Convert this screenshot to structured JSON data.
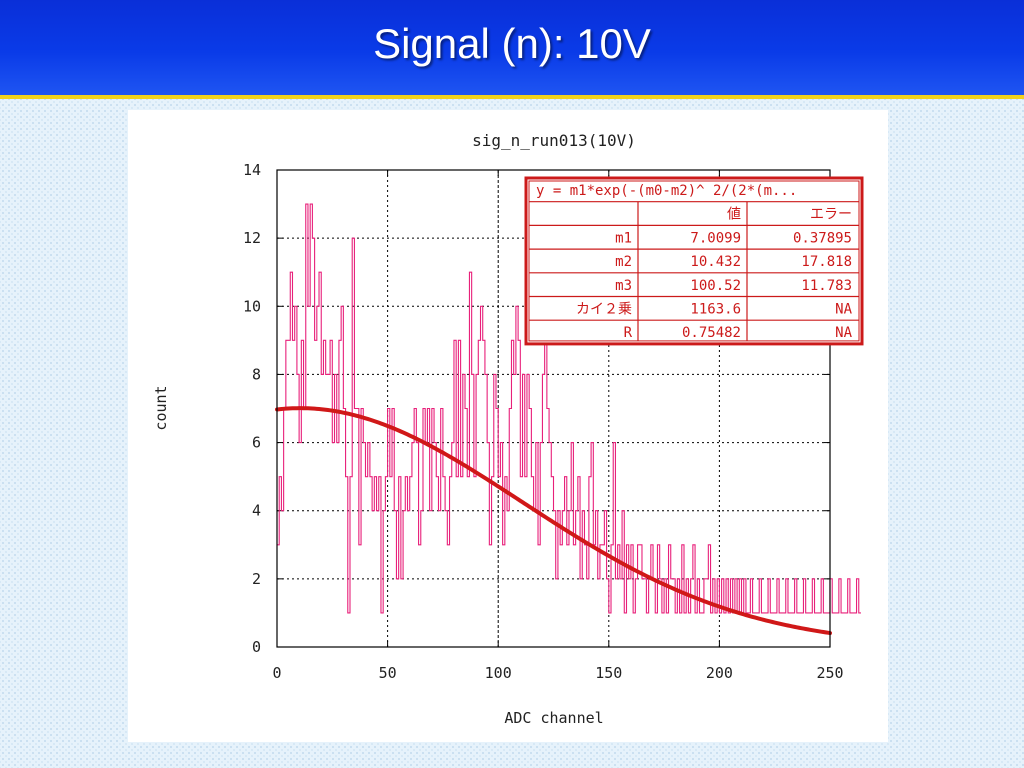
{
  "slide": {
    "title": "Signal (n):  10V"
  },
  "chart_data": {
    "type": "line",
    "title": "sig_n_run013(10V)",
    "xlabel": "ADC channel",
    "ylabel": "count",
    "xlim": [
      0,
      250
    ],
    "ylim": [
      0,
      14
    ],
    "xticks": [
      0,
      50,
      100,
      150,
      200,
      250
    ],
    "yticks": [
      0,
      2,
      4,
      6,
      8,
      10,
      12,
      14
    ],
    "grid": true,
    "series": [
      {
        "kind": "step-histogram",
        "color": "#e8207a",
        "bin_width": 1,
        "x_start": 0,
        "values": [
          3,
          5,
          4,
          7,
          9,
          9,
          11,
          9,
          10,
          8,
          6,
          9,
          7,
          13,
          10,
          13,
          12,
          9,
          10,
          11,
          8,
          9,
          8,
          8,
          9,
          6,
          8,
          6,
          9,
          10,
          7,
          5,
          1,
          5,
          12,
          7,
          7,
          3,
          7,
          6,
          5,
          6,
          5,
          4,
          5,
          4,
          5,
          1,
          4,
          5,
          7,
          5,
          7,
          4,
          2,
          5,
          2,
          4,
          5,
          4,
          5,
          6,
          7,
          6,
          3,
          4,
          7,
          6,
          7,
          4,
          7,
          6,
          5,
          4,
          7,
          5,
          4,
          3,
          5,
          6,
          9,
          5,
          9,
          5,
          8,
          7,
          5,
          11,
          8,
          5,
          8,
          9,
          10,
          9,
          8,
          6,
          3,
          5,
          8,
          7,
          5,
          6,
          3,
          5,
          4,
          7,
          9,
          8,
          10,
          9,
          5,
          8,
          5,
          8,
          7,
          5,
          4,
          6,
          3,
          6,
          8,
          9,
          7,
          6,
          5,
          4,
          2,
          4,
          3,
          4,
          5,
          3,
          4,
          6,
          3,
          4,
          5,
          2,
          4,
          3,
          2,
          5,
          6,
          3,
          4,
          2,
          3,
          3,
          4,
          2,
          1,
          3,
          6,
          2,
          3,
          2,
          4,
          1,
          3,
          2,
          3,
          1,
          2,
          3,
          3,
          2,
          2,
          1,
          2,
          3,
          2,
          1,
          3,
          2,
          1,
          2,
          1,
          3,
          2,
          2,
          1,
          2,
          1,
          3,
          1,
          2,
          1,
          2,
          3,
          1,
          2,
          1,
          1,
          2,
          2,
          3,
          1,
          2,
          1,
          2,
          1,
          2,
          1,
          2,
          1,
          2,
          1,
          2,
          1,
          2,
          1,
          2,
          1,
          1,
          2,
          1,
          1,
          1,
          2,
          1,
          1,
          1,
          2,
          1,
          1,
          1,
          2,
          1,
          1,
          1,
          2,
          1,
          1,
          1,
          2,
          1,
          1,
          1,
          2,
          1,
          1,
          1,
          2,
          1,
          1,
          1,
          2,
          1,
          1,
          1,
          2,
          1,
          1,
          1,
          2,
          1,
          1,
          1,
          2,
          1,
          1,
          1,
          2,
          1
        ]
      },
      {
        "kind": "fit-curve",
        "color": "#d01818",
        "formula": "gaussian",
        "params": {
          "m1": 7.0099,
          "m2": 10.432,
          "m3": 100.52
        }
      }
    ],
    "fit_table": {
      "header": "y = m1*exp(-(m0-m2)^ 2/(2*(m...",
      "col_value": "値",
      "col_error": "エラー",
      "rows": [
        {
          "name": "m1",
          "value": "7.0099",
          "error": "0.37895"
        },
        {
          "name": "m2",
          "value": "10.432",
          "error": "17.818"
        },
        {
          "name": "m3",
          "value": "100.52",
          "error": "11.783"
        },
        {
          "name": "カイ２乗",
          "value": "1163.6",
          "error": "NA"
        },
        {
          "name": "R",
          "value": "0.75482",
          "error": "NA"
        }
      ]
    }
  }
}
